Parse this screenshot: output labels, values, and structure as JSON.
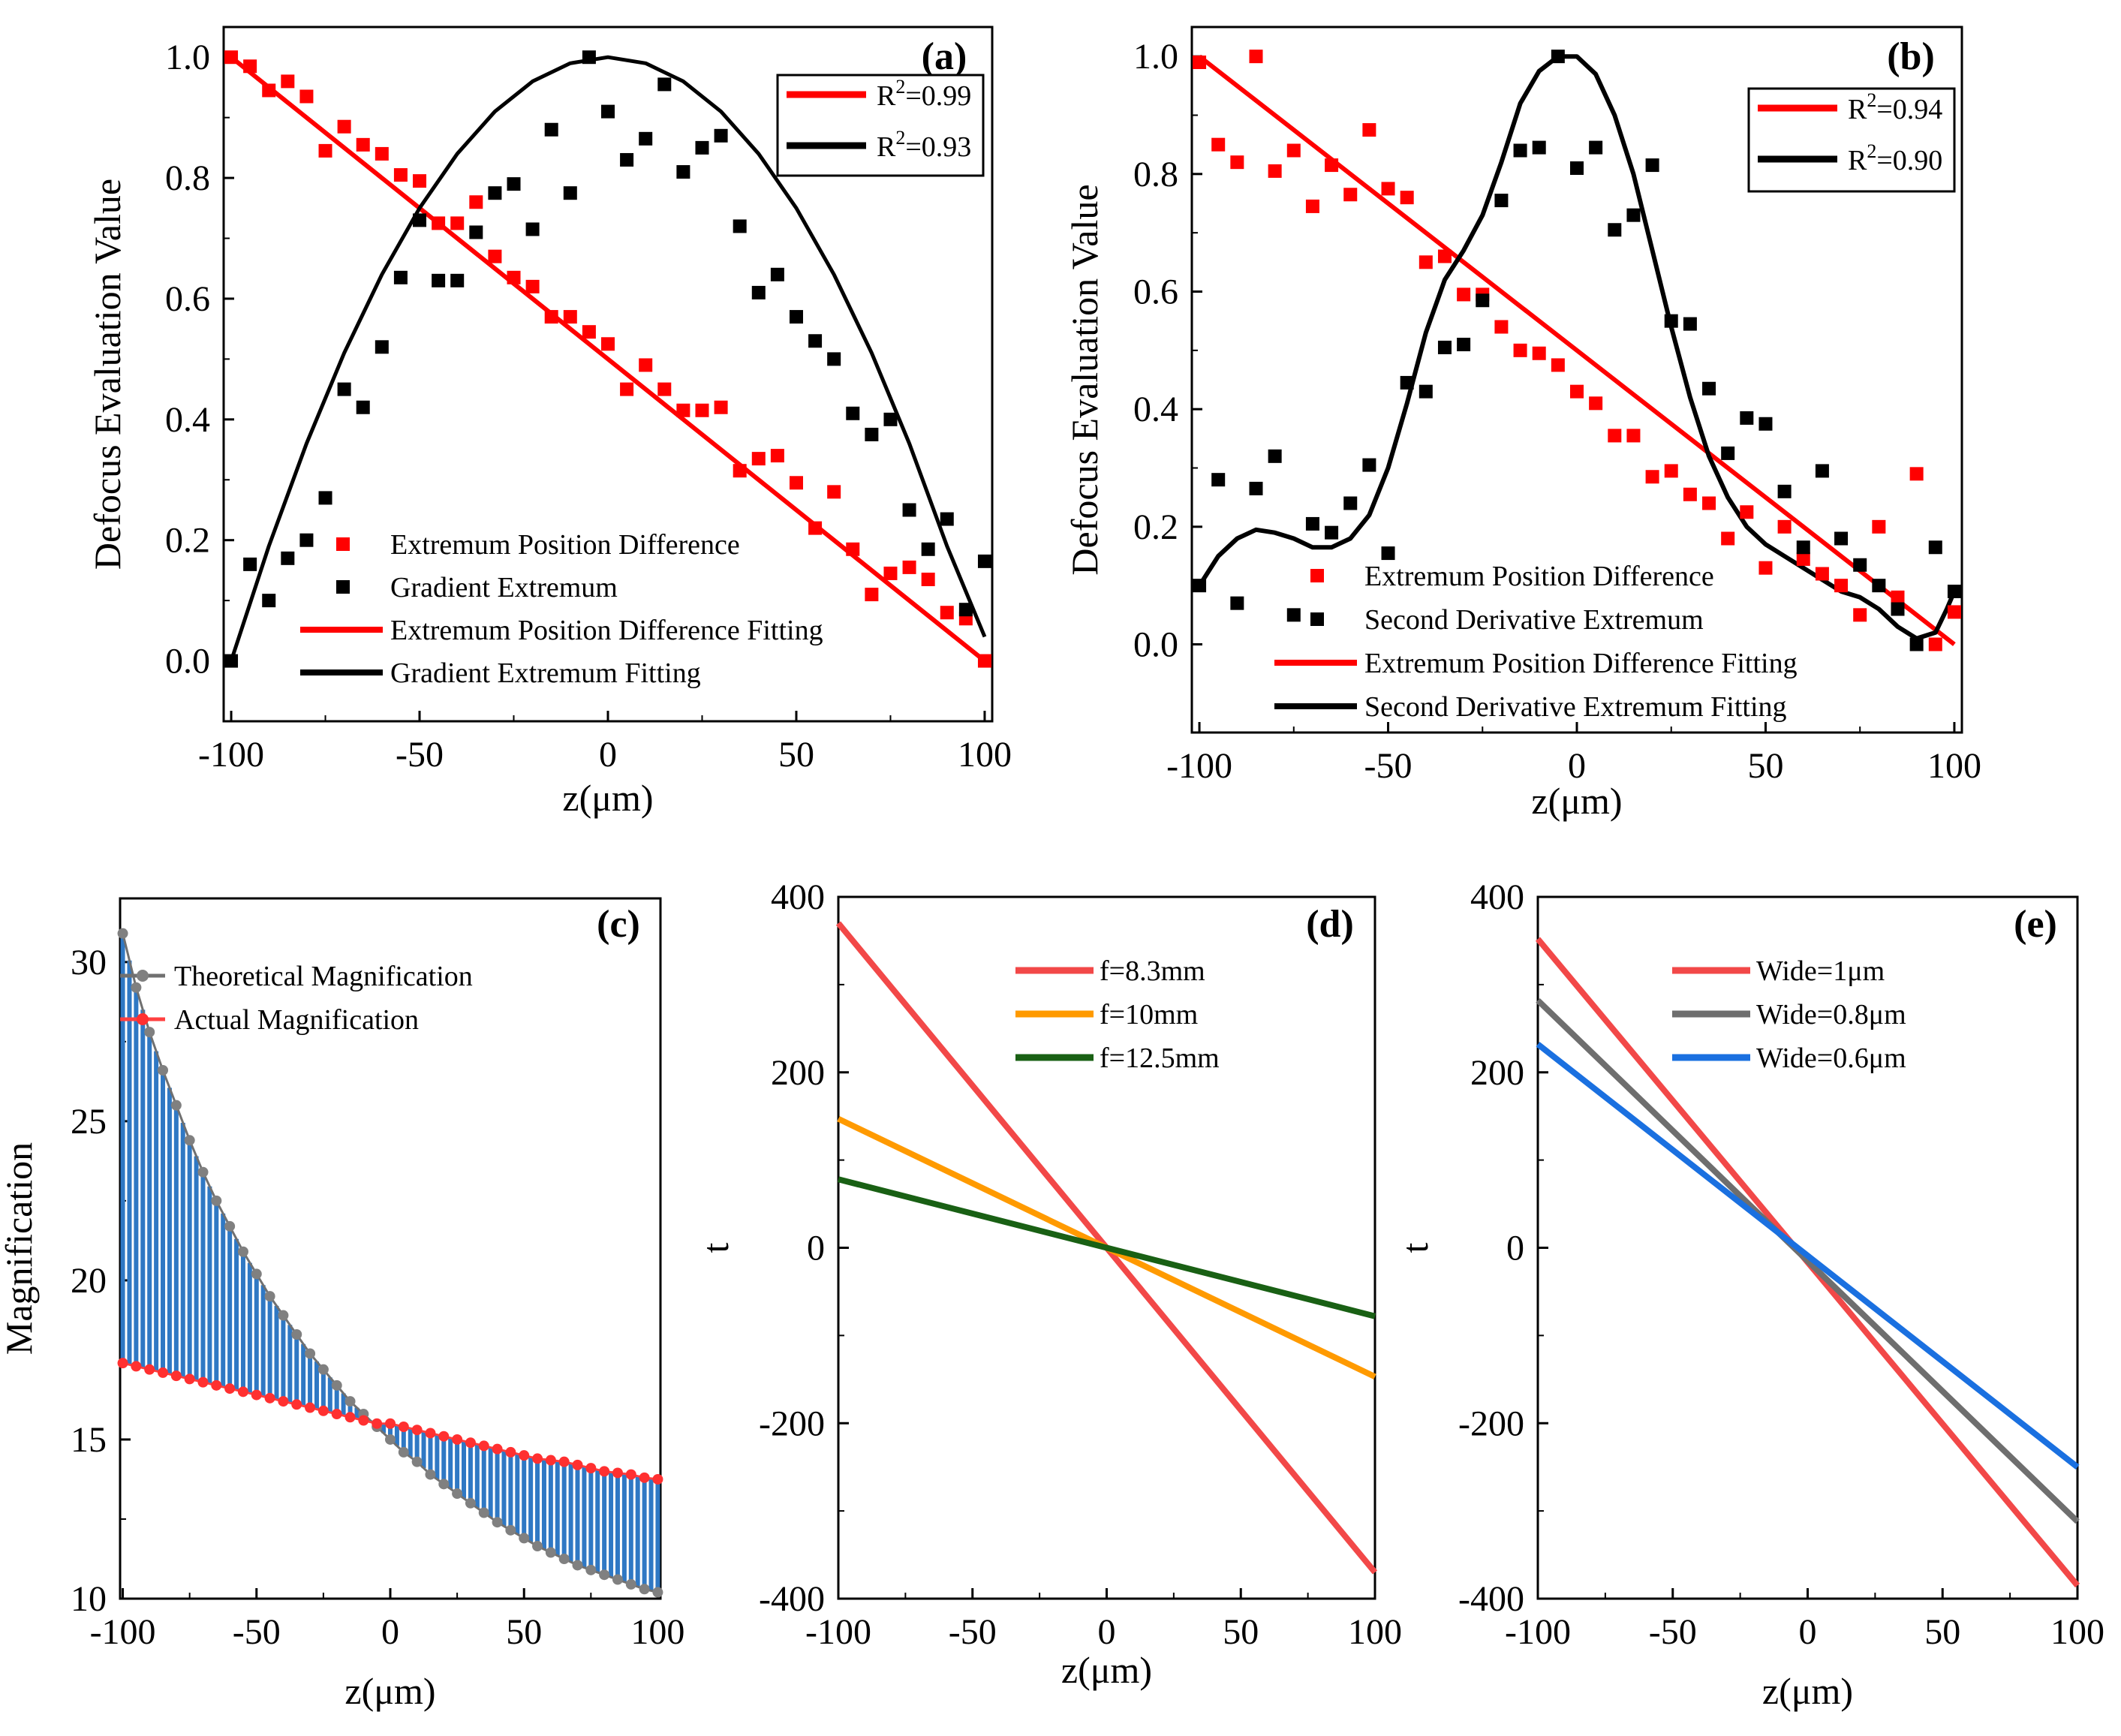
{
  "chart_data": [
    {
      "id": "a",
      "type": "scatter",
      "tag": "(a)",
      "title": "",
      "xlabel": "z(μm)",
      "ylabel": "Defocus Evaluation Value",
      "xlim": [
        -102,
        102
      ],
      "ylim": [
        -0.1,
        1.05
      ],
      "xticks": [
        -100,
        -50,
        0,
        50,
        100
      ],
      "xtick_labels": [
        "-100",
        "-50",
        "0",
        "50",
        "100"
      ],
      "yticks": [
        0,
        0.2,
        0.4,
        0.6,
        0.8,
        1.0
      ],
      "ytick_labels": [
        "0.0",
        "0.2",
        "0.4",
        "0.6",
        "0.8",
        "1.0"
      ],
      "fit_stats": [
        {
          "base": "R",
          "sup": "2",
          "value": "=0.99",
          "color": "#ff0000"
        },
        {
          "base": "R",
          "sup": "2",
          "value": "=0.93",
          "color": "#000000"
        }
      ],
      "legend": [
        "Extremum Position Difference",
        "Gradient Extremum",
        "Extremum Position Difference Fitting",
        "Gradient Extremum Fitting"
      ],
      "series": [
        {
          "name": "Extremum Position Difference",
          "kind": "points",
          "color": "#ff0000",
          "x": [
            -100,
            -95,
            -90,
            -85,
            -80,
            -75,
            -70,
            -65,
            -60,
            -55,
            -50,
            -45,
            -40,
            -35,
            -30,
            -25,
            -20,
            -15,
            -10,
            -5,
            0,
            5,
            10,
            15,
            20,
            25,
            30,
            35,
            40,
            45,
            50,
            55,
            60,
            65,
            70,
            75,
            80,
            85,
            90,
            95,
            100
          ],
          "y": [
            1.0,
            0.985,
            0.945,
            0.96,
            0.935,
            0.845,
            0.885,
            0.855,
            0.84,
            0.805,
            0.795,
            0.725,
            0.725,
            0.76,
            0.67,
            0.635,
            0.62,
            0.57,
            0.57,
            0.545,
            0.525,
            0.45,
            0.49,
            0.45,
            0.415,
            0.415,
            0.42,
            0.315,
            0.335,
            0.34,
            0.295,
            0.22,
            0.28,
            0.185,
            0.11,
            0.145,
            0.155,
            0.135,
            0.08,
            0.07,
            0.0
          ]
        },
        {
          "name": "Gradient Extremum",
          "kind": "points",
          "color": "#000000",
          "x": [
            -100,
            -95,
            -90,
            -85,
            -80,
            -75,
            -70,
            -65,
            -60,
            -55,
            -50,
            -45,
            -40,
            -35,
            -30,
            -25,
            -20,
            -15,
            -10,
            -5,
            0,
            5,
            10,
            15,
            20,
            25,
            30,
            35,
            40,
            45,
            50,
            55,
            60,
            65,
            70,
            75,
            80,
            85,
            90,
            95,
            100
          ],
          "y": [
            0.0,
            0.16,
            0.1,
            0.17,
            0.2,
            0.27,
            0.45,
            0.42,
            0.52,
            0.635,
            0.73,
            0.63,
            0.63,
            0.71,
            0.775,
            0.79,
            0.715,
            0.88,
            0.775,
            1.0,
            0.91,
            0.83,
            0.865,
            0.955,
            0.81,
            0.85,
            0.87,
            0.72,
            0.61,
            0.64,
            0.57,
            0.53,
            0.5,
            0.41,
            0.375,
            0.4,
            0.25,
            0.185,
            0.235,
            0.085,
            0.165
          ]
        },
        {
          "name": "Extremum Position Difference Fitting",
          "kind": "line",
          "color": "#ff0000",
          "width": 6,
          "x": [
            -100,
            100
          ],
          "y": [
            1.0,
            0.0
          ]
        },
        {
          "name": "Gradient Extremum Fitting",
          "kind": "line",
          "color": "#000000",
          "width": 5,
          "x": [
            -100,
            -90,
            -80,
            -70,
            -60,
            -50,
            -40,
            -30,
            -20,
            -10,
            0,
            10,
            20,
            30,
            40,
            50,
            60,
            70,
            80,
            90,
            100
          ],
          "y": [
            0.0,
            0.19,
            0.36,
            0.51,
            0.64,
            0.75,
            0.84,
            0.91,
            0.96,
            0.99,
            1.0,
            0.99,
            0.96,
            0.91,
            0.84,
            0.75,
            0.64,
            0.51,
            0.36,
            0.19,
            0.04
          ]
        }
      ]
    },
    {
      "id": "b",
      "type": "scatter",
      "tag": "(b)",
      "title": "",
      "xlabel": "z(μm)",
      "ylabel": "Defocus Evaluation Value",
      "xlim": [
        -102,
        102
      ],
      "ylim": [
        -0.15,
        1.05
      ],
      "xticks": [
        -100,
        -50,
        0,
        50,
        100
      ],
      "xtick_labels": [
        "-100",
        "-50",
        "0",
        "50",
        "100"
      ],
      "yticks": [
        0,
        0.2,
        0.4,
        0.6,
        0.8,
        1.0
      ],
      "ytick_labels": [
        "0.0",
        "0.2",
        "0.4",
        "0.6",
        "0.8",
        "1.0"
      ],
      "fit_stats": [
        {
          "base": "R",
          "sup": "2",
          "value": "=0.94",
          "color": "#ff0000"
        },
        {
          "base": "R",
          "sup": "2",
          "value": "=0.90",
          "color": "#000000"
        }
      ],
      "legend": [
        "Extremum Position Difference",
        "Second Derivative Extremum",
        "Extremum Position Difference Fitting",
        "Second Derivative Extremum Fitting"
      ],
      "series": [
        {
          "name": "Extremum Position Difference",
          "kind": "points",
          "color": "#ff0000",
          "x": [
            -100,
            -95,
            -90,
            -85,
            -80,
            -75,
            -70,
            -65,
            -60,
            -55,
            -50,
            -45,
            -40,
            -35,
            -30,
            -25,
            -20,
            -15,
            -10,
            -5,
            0,
            5,
            10,
            15,
            20,
            25,
            30,
            35,
            40,
            45,
            50,
            55,
            60,
            65,
            70,
            75,
            80,
            85,
            90,
            95,
            100
          ],
          "y": [
            0.99,
            0.85,
            0.82,
            1.0,
            0.805,
            0.84,
            0.745,
            0.815,
            0.765,
            0.875,
            0.775,
            0.76,
            0.65,
            0.66,
            0.595,
            0.595,
            0.54,
            0.5,
            0.495,
            0.475,
            0.43,
            0.41,
            0.355,
            0.355,
            0.285,
            0.295,
            0.255,
            0.24,
            0.18,
            0.225,
            0.13,
            0.2,
            0.145,
            0.12,
            0.1,
            0.05,
            0.2,
            0.08,
            0.29,
            0.0,
            0.055
          ]
        },
        {
          "name": "Second Derivative Extremum",
          "kind": "points",
          "color": "#000000",
          "x": [
            -100,
            -95,
            -90,
            -85,
            -80,
            -75,
            -70,
            -65,
            -60,
            -55,
            -50,
            -45,
            -40,
            -35,
            -30,
            -25,
            -20,
            -15,
            -10,
            -5,
            0,
            5,
            10,
            15,
            20,
            25,
            30,
            35,
            40,
            45,
            50,
            55,
            60,
            65,
            70,
            75,
            80,
            85,
            90,
            95,
            100
          ],
          "y": [
            0.1,
            0.28,
            0.07,
            0.265,
            0.32,
            0.05,
            0.205,
            0.19,
            0.24,
            0.305,
            0.155,
            0.445,
            0.43,
            0.505,
            0.51,
            0.585,
            0.755,
            0.84,
            0.845,
            1.0,
            0.81,
            0.845,
            0.705,
            0.73,
            0.815,
            0.55,
            0.545,
            0.435,
            0.325,
            0.385,
            0.375,
            0.26,
            0.165,
            0.295,
            0.18,
            0.135,
            0.1,
            0.06,
            0.0,
            0.165,
            0.09
          ]
        },
        {
          "name": "Extremum Position Difference Fitting",
          "kind": "line",
          "color": "#ff0000",
          "width": 6,
          "x": [
            -100,
            100
          ],
          "y": [
            1.0,
            0.0
          ]
        },
        {
          "name": "Second Derivative Extremum Fitting",
          "kind": "line",
          "color": "#000000",
          "width": 6,
          "x": [
            -100,
            -95,
            -90,
            -85,
            -80,
            -75,
            -70,
            -65,
            -60,
            -55,
            -50,
            -45,
            -40,
            -35,
            -30,
            -25,
            -20,
            -15,
            -10,
            -5,
            0,
            5,
            10,
            15,
            20,
            25,
            30,
            35,
            40,
            45,
            50,
            55,
            60,
            65,
            70,
            75,
            80,
            85,
            90,
            95,
            98,
            100
          ],
          "y": [
            0.1,
            0.15,
            0.18,
            0.195,
            0.19,
            0.18,
            0.165,
            0.165,
            0.18,
            0.22,
            0.3,
            0.41,
            0.53,
            0.62,
            0.67,
            0.73,
            0.82,
            0.92,
            0.975,
            1.0,
            1.0,
            0.97,
            0.9,
            0.8,
            0.67,
            0.54,
            0.42,
            0.32,
            0.25,
            0.2,
            0.17,
            0.15,
            0.13,
            0.11,
            0.09,
            0.08,
            0.06,
            0.03,
            0.01,
            0.02,
            0.06,
            0.09
          ]
        }
      ]
    },
    {
      "id": "c",
      "type": "line",
      "tag": "(c)",
      "title": "",
      "xlabel": "z(μm)",
      "ylabel": "Magnification",
      "xlim": [
        -101,
        101
      ],
      "ylim": [
        10,
        32
      ],
      "xticks": [
        -100,
        -50,
        0,
        50,
        100
      ],
      "xtick_labels": [
        "-100",
        "-50",
        "0",
        "50",
        "100"
      ],
      "yticks": [
        10,
        15,
        20,
        25,
        30
      ],
      "ytick_labels": [
        "10",
        "15",
        "20",
        "25",
        "30"
      ],
      "fill_color": "#2f78c4",
      "legend": [
        "Theoretical Magnification",
        "Actual Magnification"
      ],
      "series": [
        {
          "name": "Theoretical Magnification",
          "color": "#707070",
          "marker_color": "#808080",
          "x": [
            -100,
            -95,
            -90,
            -85,
            -80,
            -75,
            -70,
            -65,
            -60,
            -55,
            -50,
            -45,
            -40,
            -35,
            -30,
            -25,
            -20,
            -15,
            -10,
            -5,
            0,
            5,
            10,
            15,
            20,
            25,
            30,
            35,
            40,
            45,
            50,
            55,
            60,
            65,
            70,
            75,
            80,
            85,
            90,
            95,
            100
          ],
          "y": [
            30.9,
            29.2,
            27.8,
            26.6,
            25.5,
            24.4,
            23.4,
            22.5,
            21.7,
            20.9,
            20.2,
            19.5,
            18.9,
            18.3,
            17.7,
            17.2,
            16.7,
            16.2,
            15.8,
            15.4,
            15.0,
            14.6,
            14.3,
            13.9,
            13.6,
            13.3,
            13.0,
            12.7,
            12.4,
            12.15,
            11.9,
            11.65,
            11.45,
            11.25,
            11.05,
            10.9,
            10.75,
            10.6,
            10.45,
            10.3,
            10.2
          ]
        },
        {
          "name": "Actual Magnification",
          "color": "#ff4040",
          "marker_color": "#ff3030",
          "x": [
            -100,
            -95,
            -90,
            -85,
            -80,
            -75,
            -70,
            -65,
            -60,
            -55,
            -50,
            -45,
            -40,
            -35,
            -30,
            -25,
            -20,
            -15,
            -10,
            -5,
            0,
            5,
            10,
            15,
            20,
            25,
            30,
            35,
            40,
            45,
            50,
            55,
            60,
            65,
            70,
            75,
            80,
            85,
            90,
            95,
            100
          ],
          "y": [
            17.4,
            17.3,
            17.2,
            17.1,
            17.0,
            16.9,
            16.8,
            16.7,
            16.6,
            16.5,
            16.4,
            16.3,
            16.2,
            16.1,
            16.0,
            15.9,
            15.8,
            15.7,
            15.6,
            15.5,
            15.5,
            15.4,
            15.3,
            15.2,
            15.1,
            15.0,
            14.9,
            14.8,
            14.7,
            14.6,
            14.5,
            14.4,
            14.35,
            14.3,
            14.2,
            14.1,
            14.0,
            13.95,
            13.9,
            13.8,
            13.75
          ]
        }
      ]
    },
    {
      "id": "d",
      "type": "line",
      "tag": "(d)",
      "title": "",
      "xlabel": "z(μm)",
      "ylabel": "t",
      "xlim": [
        -100,
        100
      ],
      "ylim": [
        -400,
        400
      ],
      "xticks": [
        -100,
        -50,
        0,
        50,
        100
      ],
      "xtick_labels": [
        "-100",
        "-50",
        "0",
        "50",
        "100"
      ],
      "yticks": [
        -400,
        -200,
        0,
        200,
        400
      ],
      "ytick_labels": [
        "-400",
        "-200",
        "0",
        "200",
        "400"
      ],
      "legend": [
        "f=8.3mm",
        "f=10mm",
        "f=12.5mm"
      ],
      "series": [
        {
          "name": "f=8.3mm",
          "color": "#f24848",
          "x": [
            -100,
            100
          ],
          "y": [
            370,
            -370
          ]
        },
        {
          "name": "f=10mm",
          "color": "#ff9a00",
          "x": [
            -100,
            100
          ],
          "y": [
            147,
            -147
          ]
        },
        {
          "name": "f=12.5mm",
          "color": "#196014",
          "x": [
            -100,
            100
          ],
          "y": [
            78,
            -78
          ]
        }
      ]
    },
    {
      "id": "e",
      "type": "line",
      "tag": "(e)",
      "title": "",
      "xlabel": "z(μm)",
      "ylabel": "t",
      "xlim": [
        -100,
        100
      ],
      "ylim": [
        -400,
        400
      ],
      "xticks": [
        -100,
        -50,
        0,
        50,
        100
      ],
      "xtick_labels": [
        "-100",
        "-50",
        "0",
        "50",
        "100"
      ],
      "yticks": [
        -400,
        -200,
        0,
        200,
        400
      ],
      "ytick_labels": [
        "-400",
        "-200",
        "0",
        "200",
        "400"
      ],
      "legend": [
        "Wide=1μm",
        "Wide=0.8μm",
        "Wide=0.6μm"
      ],
      "series": [
        {
          "name": "Wide=1μm",
          "color": "#f24848",
          "x": [
            -100,
            100
          ],
          "y": [
            352,
            -385
          ]
        },
        {
          "name": "Wide=0.8μm",
          "color": "#6e6e6e",
          "x": [
            -100,
            100
          ],
          "y": [
            282,
            -312
          ]
        },
        {
          "name": "Wide=0.6μm",
          "color": "#1a70e0",
          "x": [
            -100,
            100
          ],
          "y": [
            232,
            -250
          ]
        }
      ]
    }
  ]
}
